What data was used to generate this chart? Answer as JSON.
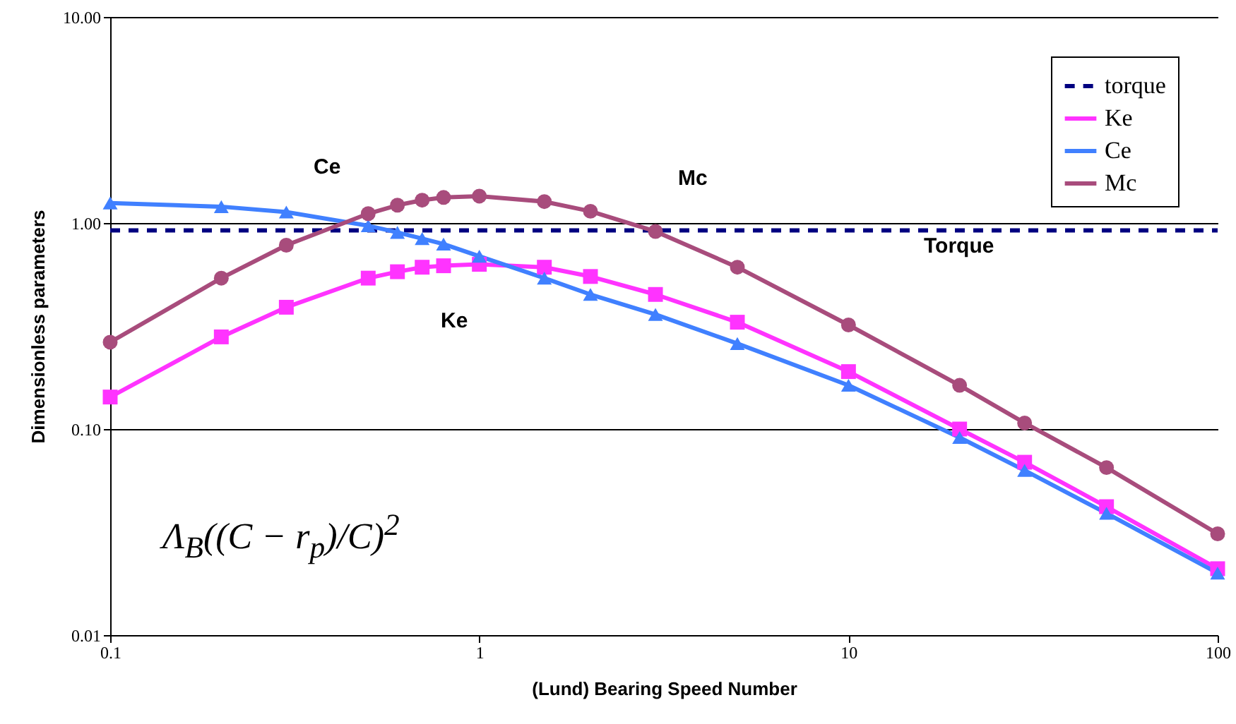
{
  "chart_data": {
    "type": "line",
    "xlabel": "(Lund) Bearing Speed Number",
    "ylabel": "Dimensionless parameters",
    "log": "xy",
    "xlim": [
      0.1,
      100
    ],
    "xticks": [
      0.1,
      1,
      10,
      100
    ],
    "ylim": [
      0.01,
      10
    ],
    "yticks": [
      {
        "value": 0.01,
        "label": "0.01"
      },
      {
        "value": 0.1,
        "label": "0.10"
      },
      {
        "value": 1,
        "label": "1.00"
      },
      {
        "value": 10,
        "label": "10.00"
      }
    ],
    "grid": "y",
    "legend": "top right",
    "series": [
      {
        "name": "torque",
        "color": "#000080",
        "marker": "none",
        "line_style": "dashed",
        "x": [
          0.1,
          100
        ],
        "values": [
          0.92,
          0.92
        ]
      },
      {
        "name": "Ke",
        "color": "#ff33ff",
        "marker": "square",
        "x": [
          0.1,
          0.2,
          0.3,
          0.5,
          0.6,
          0.7,
          0.8,
          1,
          1.5,
          2,
          3,
          5,
          10,
          20,
          30,
          50,
          100
        ],
        "values": [
          0.143,
          0.28,
          0.39,
          0.54,
          0.58,
          0.61,
          0.62,
          0.63,
          0.61,
          0.55,
          0.45,
          0.33,
          0.19,
          0.1,
          0.069,
          0.042,
          0.021
        ]
      },
      {
        "name": "Ce",
        "color": "#4080ff",
        "marker": "triangle",
        "x": [
          0.1,
          0.2,
          0.3,
          0.5,
          0.6,
          0.7,
          0.8,
          1,
          1.5,
          2,
          3,
          5,
          10,
          20,
          30,
          50,
          100
        ],
        "values": [
          1.25,
          1.2,
          1.13,
          0.97,
          0.9,
          0.84,
          0.79,
          0.69,
          0.54,
          0.45,
          0.36,
          0.26,
          0.163,
          0.091,
          0.063,
          0.039,
          0.02
        ]
      },
      {
        "name": "Mc",
        "color": "#a84c7c",
        "marker": "circle",
        "x": [
          0.1,
          0.2,
          0.3,
          0.5,
          0.6,
          0.7,
          0.8,
          1,
          1.5,
          2,
          3,
          5,
          10,
          20,
          30,
          50,
          100
        ],
        "values": [
          0.264,
          0.54,
          0.78,
          1.11,
          1.22,
          1.29,
          1.33,
          1.35,
          1.27,
          1.14,
          0.91,
          0.61,
          0.32,
          0.163,
          0.107,
          0.065,
          0.031
        ]
      }
    ],
    "annotations": [
      "Ce",
      "Ke",
      "Mc",
      "Torque",
      "Λ$_{B}$((C − r$_{p}$)/C)$^{2}$"
    ]
  }
}
